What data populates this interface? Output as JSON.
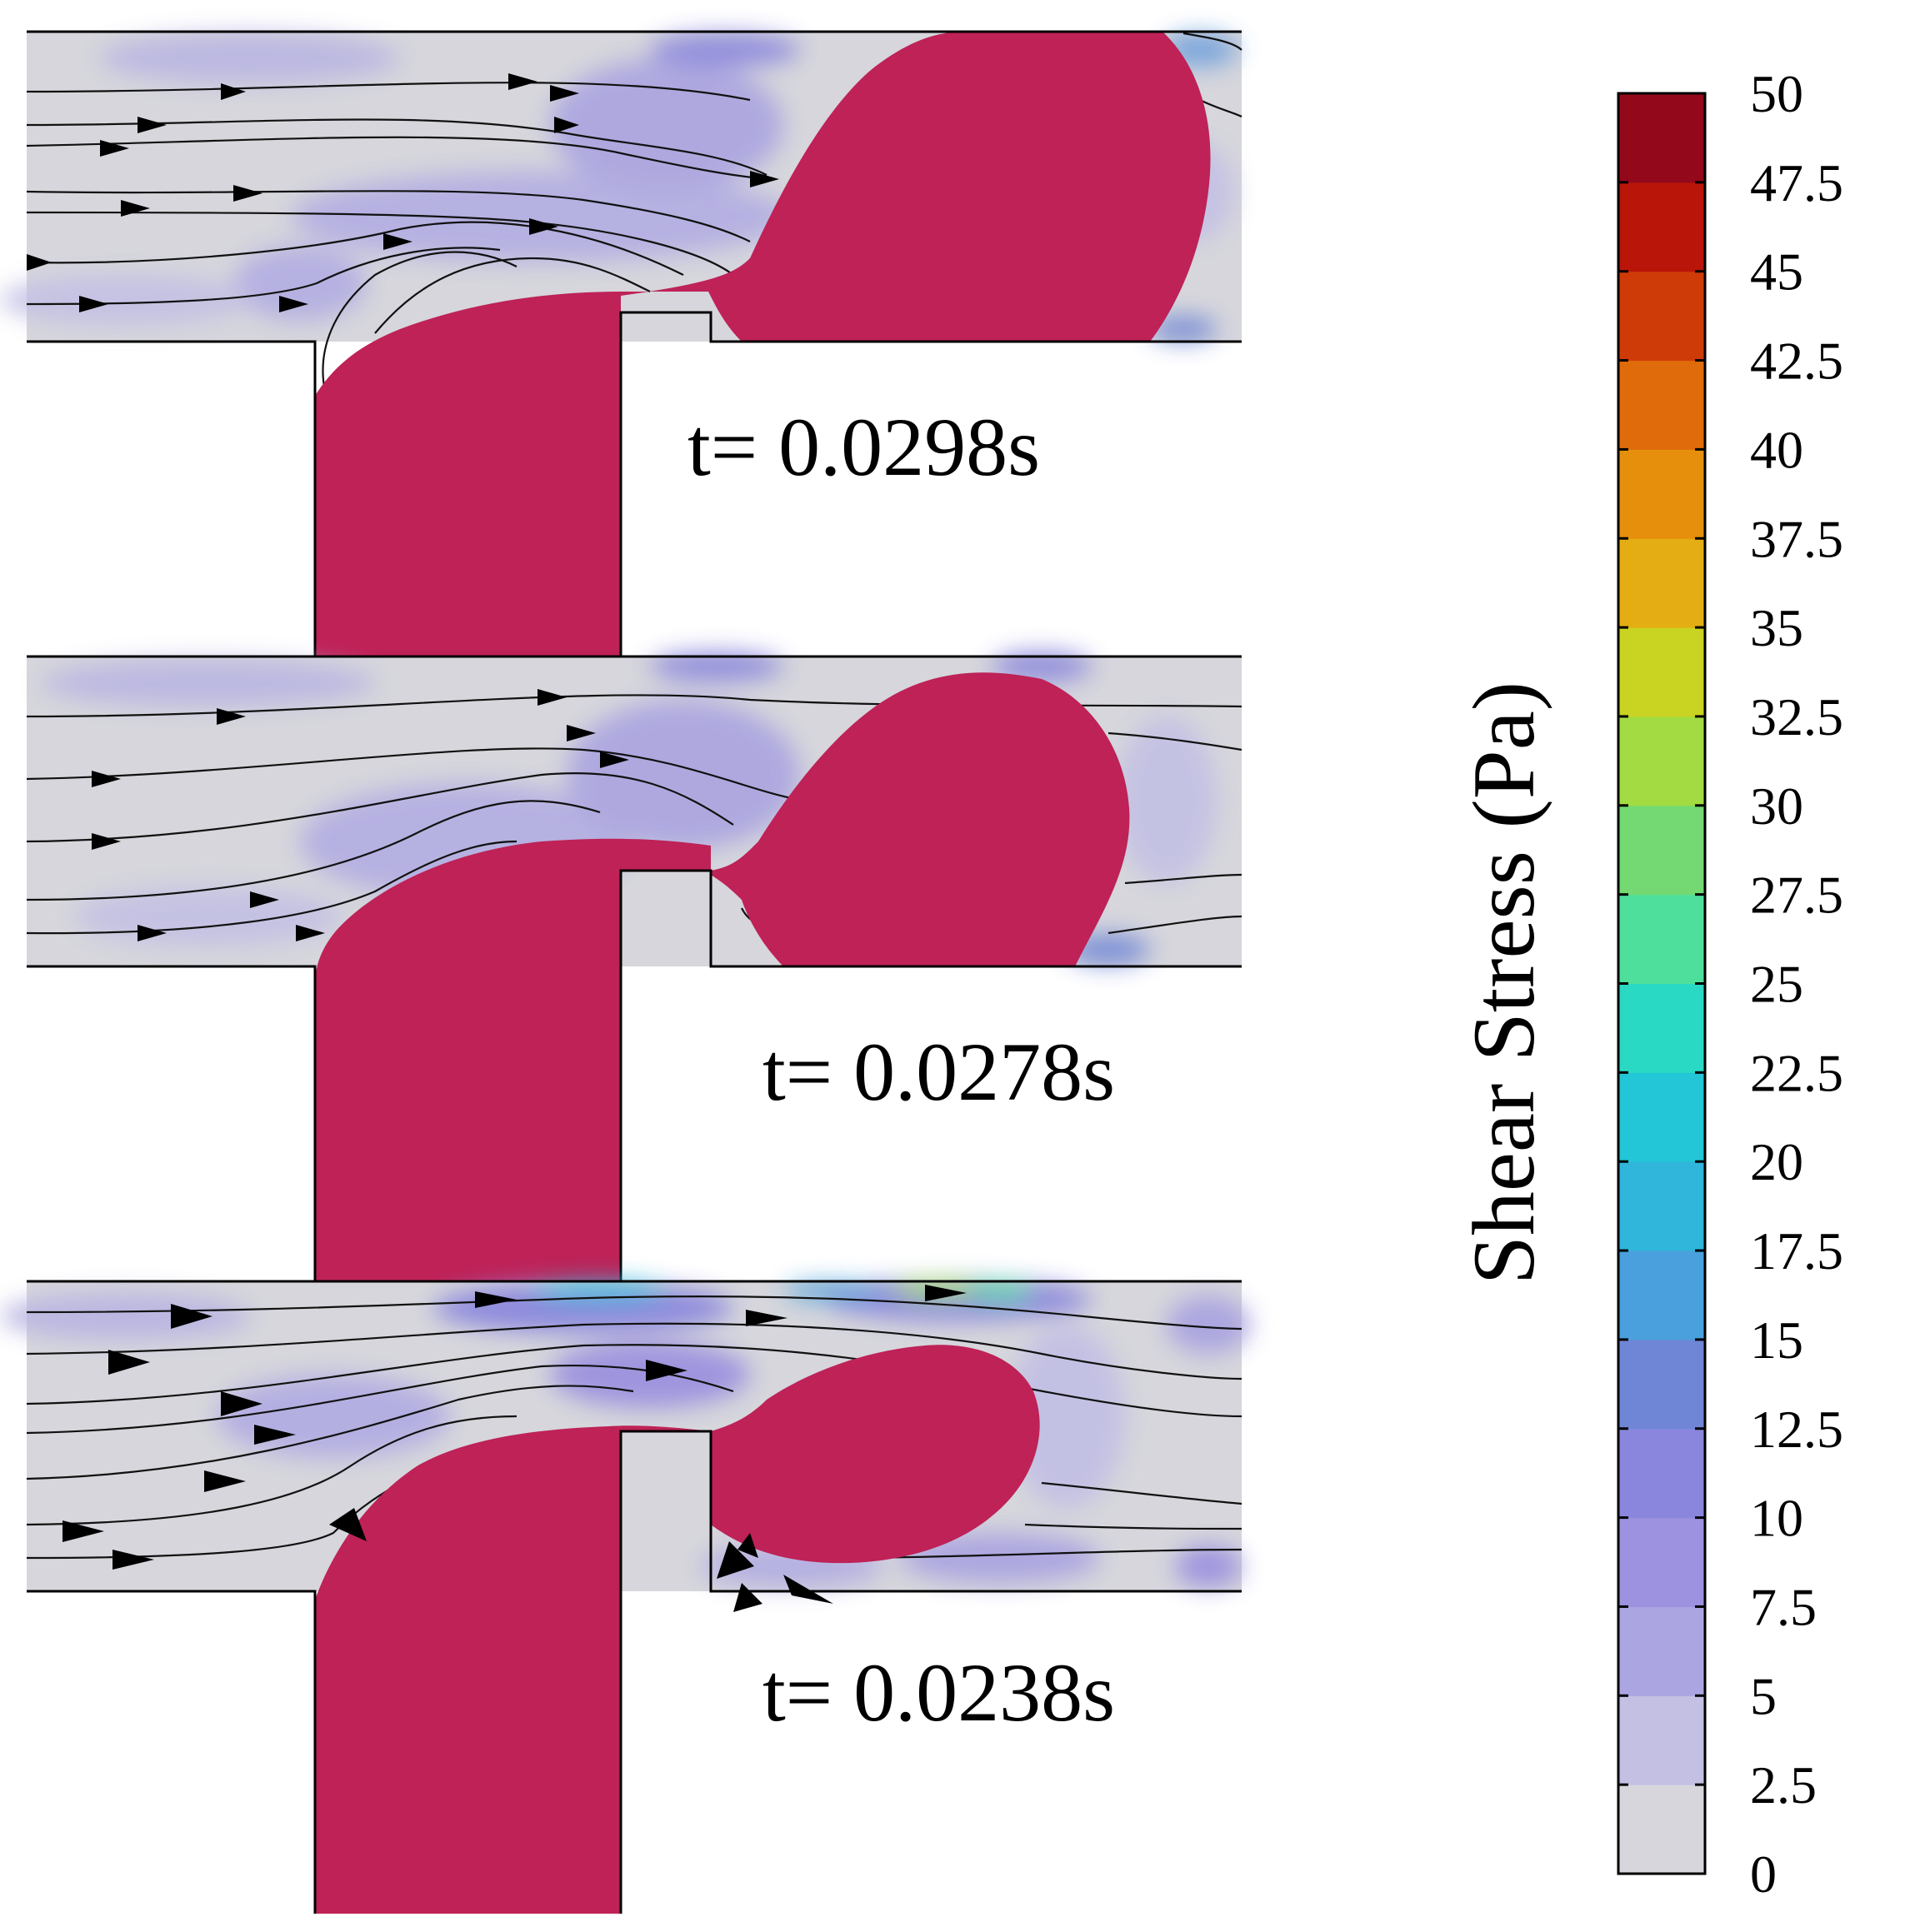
{
  "panels": [
    {
      "time_label": "t= 0.0298s"
    },
    {
      "time_label": "t= 0.0278s"
    },
    {
      "time_label": "t= 0.0238s"
    }
  ],
  "colorbar": {
    "title": "Shear Stress (Pa)",
    "ticks": [
      "50",
      "47.5",
      "45",
      "42.5",
      "40",
      "37.5",
      "35",
      "32.5",
      "30",
      "27.5",
      "25",
      "22.5",
      "20",
      "17.5",
      "15",
      "12.5",
      "10",
      "7.5",
      "5",
      "2.5",
      "0"
    ],
    "colors": [
      "#d6d6dc",
      "#c3c0e4",
      "#aba6e2",
      "#9c92df",
      "#8a86dd",
      "#6f86d6",
      "#4aa0dc",
      "#30b5db",
      "#22c6d6",
      "#2ad9c4",
      "#4fdf9d",
      "#74d972",
      "#a3dc42",
      "#c9d321",
      "#e4ad13",
      "#e58f0c",
      "#e06b0a",
      "#cf3b08",
      "#b91509",
      "#93081a",
      "#5e0329"
    ],
    "droplet_color": "#be2257",
    "background_low": "#d6d6dc"
  }
}
